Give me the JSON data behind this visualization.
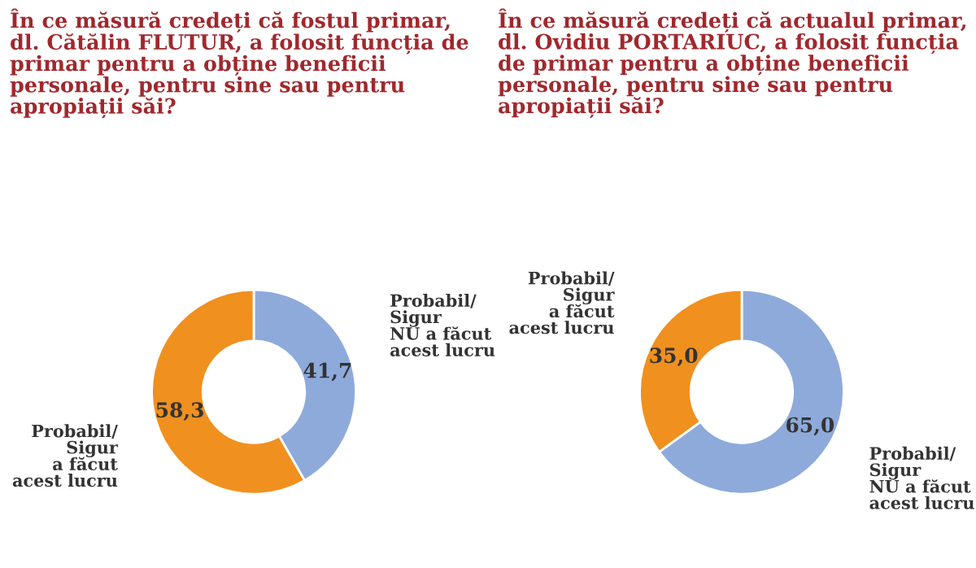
{
  "chart_data": [
    {
      "type": "donut",
      "title": "În ce măsură credeți că fostul primar,\ndl. Cătălin FLUTUR, a folosit funcția de\nprimar pentru a obține beneficii\npersonale, pentru sine sau pentru\napropiații săi?",
      "categories": [
        "Probabil/\nSigur\nNU a făcut\nacest lucru",
        "Probabil/\nSigur\na făcut\nacest lucru"
      ],
      "values": [
        41.7,
        58.3
      ],
      "value_labels": [
        "41,7",
        "58,3"
      ],
      "colors": [
        "#8eaadb",
        "#f0901e"
      ]
    },
    {
      "type": "donut",
      "title": "În ce măsură credeți că actualul primar,\ndl. Ovidiu PORTARIUC, a folosit funcția\nde primar pentru a obține beneficii\npersonale, pentru sine sau pentru\napropiații săi?",
      "categories": [
        "Probabil/\nSigur\nNU a făcut\nacest lucru",
        "Probabil/\nSigur\na făcut\nacest lucru"
      ],
      "values": [
        65.0,
        35.0
      ],
      "value_labels": [
        "65,0",
        "35,0"
      ],
      "colors": [
        "#8eaadb",
        "#f0901e"
      ]
    }
  ]
}
